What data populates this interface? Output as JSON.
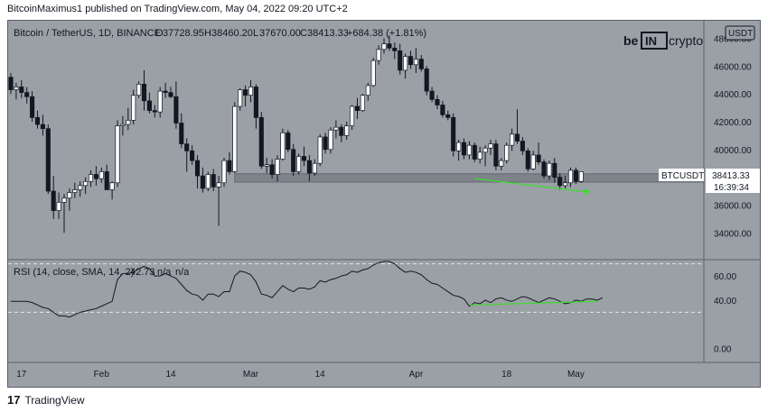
{
  "caption": "BitcoinMaximus1 published on TradingView.com, May 04, 2022 09:20 UTC+2",
  "footer": {
    "brand": "TradingView"
  },
  "chart_data": [
    {
      "type": "candlestick",
      "title": "Bitcoin / TetherUS, 1D, BINANCE",
      "ohlc_label": {
        "o_key": "O",
        "o": "37728.95",
        "h_key": "H",
        "h": "38460.20",
        "l_key": "L",
        "l": "37670.00",
        "c_key": "C",
        "c": "38413.33",
        "change": "+684.38 (+1.81%)"
      },
      "currency": "USDT",
      "logo": "be[in]crypto",
      "price_tag": {
        "symbol": "BTCUSDT",
        "price": "38413.33",
        "countdown": "16:39:34"
      },
      "y_ticks": [
        "48000.00",
        "46000.00",
        "44000.00",
        "42000.00",
        "40000.00",
        "38000.00",
        "36000.00",
        "34000.00"
      ],
      "y_tick_values": [
        48000,
        46000,
        44000,
        42000,
        40000,
        38000,
        36000,
        34000
      ],
      "ylim": [
        32200,
        49200
      ],
      "x_ticks": [
        {
          "label": "17",
          "index": 2
        },
        {
          "label": "Feb",
          "index": 17
        },
        {
          "label": "14",
          "index": 30
        },
        {
          "label": "Mar",
          "index": 45
        },
        {
          "label": "14",
          "index": 58
        },
        {
          "label": "Apr",
          "index": 76
        },
        {
          "label": "18",
          "index": 93
        },
        {
          "label": "May",
          "index": 106
        }
      ],
      "support_zone": {
        "from_index": 42,
        "low": 37650,
        "high": 38250
      },
      "trendline": {
        "from": {
          "index": 87,
          "value": 37900
        },
        "to": {
          "index": 108,
          "value": 36950
        }
      },
      "signal_marker": {
        "index": 108,
        "value": 36900
      },
      "candles": [
        [
          45200,
          45500,
          44000,
          44300
        ],
        [
          44300,
          44800,
          43600,
          44500
        ],
        [
          44500,
          45000,
          43700,
          44100
        ],
        [
          44100,
          44500,
          43300,
          43800
        ],
        [
          43800,
          44200,
          42000,
          42300
        ],
        [
          42300,
          42800,
          41500,
          41800
        ],
        [
          41800,
          42500,
          41000,
          41500
        ],
        [
          41500,
          41800,
          36800,
          37000
        ],
        [
          37000,
          38100,
          35000,
          35600
        ],
        [
          35600,
          36900,
          35000,
          36200
        ],
        [
          36200,
          36800,
          34000,
          36500
        ],
        [
          36500,
          37200,
          35600,
          36900
        ],
        [
          36900,
          37600,
          36500,
          37100
        ],
        [
          37100,
          37700,
          36600,
          37400
        ],
        [
          37400,
          38000,
          36800,
          37700
        ],
        [
          37700,
          38500,
          37300,
          38200
        ],
        [
          38200,
          38800,
          37400,
          37900
        ],
        [
          37900,
          38700,
          37600,
          38400
        ],
        [
          38400,
          38900,
          37200,
          37100
        ],
        [
          37100,
          37700,
          36400,
          37600
        ],
        [
          37600,
          42100,
          37300,
          41700
        ],
        [
          41700,
          42400,
          41000,
          41800
        ],
        [
          41800,
          43000,
          41400,
          42100
        ],
        [
          42100,
          44300,
          41800,
          43900
        ],
        [
          43900,
          44900,
          43700,
          44700
        ],
        [
          44700,
          45700,
          42800,
          43500
        ],
        [
          43500,
          44100,
          42600,
          42800
        ],
        [
          42800,
          43200,
          42300,
          42700
        ],
        [
          42700,
          44500,
          42300,
          44200
        ],
        [
          44200,
          44800,
          43700,
          44100
        ],
        [
          44100,
          44500,
          43700,
          43800
        ],
        [
          43800,
          44900,
          41500,
          41900
        ],
        [
          41900,
          42600,
          40100,
          40400
        ],
        [
          40400,
          40800,
          38400,
          39900
        ],
        [
          39900,
          40300,
          38900,
          39200
        ],
        [
          39200,
          39600,
          37200,
          38100
        ],
        [
          38100,
          38700,
          36900,
          37200
        ],
        [
          37200,
          38400,
          37000,
          38200
        ],
        [
          38200,
          38600,
          37000,
          37300
        ],
        [
          37300,
          38100,
          34500,
          37600
        ],
        [
          37600,
          39400,
          37300,
          39200
        ],
        [
          39200,
          39800,
          38200,
          38400
        ],
        [
          38400,
          43400,
          38300,
          43100
        ],
        [
          43100,
          44400,
          42800,
          44300
        ],
        [
          44300,
          44600,
          43100,
          43900
        ],
        [
          43900,
          45000,
          43400,
          44500
        ],
        [
          44500,
          44700,
          41500,
          42300
        ],
        [
          42300,
          42700,
          38600,
          38800
        ],
        [
          38800,
          39400,
          38300,
          38900
        ],
        [
          38900,
          39300,
          37900,
          38200
        ],
        [
          38200,
          39600,
          37700,
          39300
        ],
        [
          39300,
          41500,
          39200,
          41200
        ],
        [
          41200,
          41400,
          39800,
          40000
        ],
        [
          40000,
          40400,
          38100,
          38400
        ],
        [
          38400,
          39700,
          38200,
          39500
        ],
        [
          39500,
          40200,
          38800,
          39200
        ],
        [
          39200,
          39600,
          37700,
          38300
        ],
        [
          38300,
          39300,
          38100,
          39000
        ],
        [
          39000,
          41100,
          38800,
          40900
        ],
        [
          40900,
          41200,
          39700,
          40000
        ],
        [
          40000,
          41600,
          39700,
          41400
        ],
        [
          41400,
          42100,
          40800,
          41600
        ],
        [
          41600,
          41800,
          40500,
          41000
        ],
        [
          41000,
          42000,
          40700,
          41700
        ],
        [
          41700,
          43200,
          41400,
          43100
        ],
        [
          43100,
          43700,
          42200,
          42800
        ],
        [
          42800,
          44000,
          42700,
          43900
        ],
        [
          43900,
          44800,
          43500,
          44600
        ],
        [
          44600,
          46600,
          44500,
          46400
        ],
        [
          46400,
          47500,
          46100,
          47200
        ],
        [
          47200,
          48000,
          46900,
          47600
        ],
        [
          47600,
          48200,
          47100,
          47300
        ],
        [
          47300,
          47700,
          46500,
          47100
        ],
        [
          47100,
          47600,
          45400,
          45700
        ],
        [
          45700,
          46900,
          45100,
          46700
        ],
        [
          46700,
          47100,
          45800,
          46100
        ],
        [
          46100,
          47300,
          45500,
          46500
        ],
        [
          46500,
          46800,
          45600,
          45800
        ],
        [
          45800,
          46000,
          43900,
          44200
        ],
        [
          44200,
          44500,
          43400,
          43600
        ],
        [
          43600,
          43900,
          42900,
          43200
        ],
        [
          43200,
          43500,
          42300,
          42500
        ],
        [
          42500,
          42800,
          42100,
          42300
        ],
        [
          42300,
          42600,
          39500,
          39900
        ],
        [
          39900,
          40700,
          39200,
          40500
        ],
        [
          40500,
          40800,
          39300,
          39600
        ],
        [
          39600,
          40600,
          39300,
          40300
        ],
        [
          40300,
          40500,
          39100,
          39300
        ],
        [
          39300,
          40200,
          39000,
          39800
        ],
        [
          39800,
          40300,
          38800,
          40100
        ],
        [
          40100,
          40700,
          39600,
          40400
        ],
        [
          40400,
          40700,
          38500,
          38800
        ],
        [
          38800,
          39400,
          38500,
          39200
        ],
        [
          39200,
          40500,
          39000,
          40300
        ],
        [
          40300,
          41500,
          39900,
          41100
        ],
        [
          41100,
          42900,
          40400,
          40600
        ],
        [
          40600,
          40900,
          39600,
          39900
        ],
        [
          39900,
          40100,
          38400,
          38600
        ],
        [
          38600,
          39900,
          38500,
          39600
        ],
        [
          39600,
          40500,
          38900,
          39100
        ],
        [
          39100,
          39300,
          37900,
          38100
        ],
        [
          38100,
          39200,
          37800,
          39000
        ],
        [
          39000,
          39400,
          37600,
          38000
        ],
        [
          38000,
          38300,
          37100,
          37400
        ],
        [
          37400,
          38100,
          37200,
          37600
        ],
        [
          37600,
          38700,
          37300,
          38500
        ],
        [
          38500,
          38700,
          37500,
          37700
        ],
        [
          37700,
          38400,
          37600,
          38400
        ]
      ]
    },
    {
      "type": "line",
      "title": "RSI (14, close, SMA, 14, 2)",
      "value_label": "42.73",
      "na_labels": [
        "n/a",
        "n/a"
      ],
      "y_ticks": [
        "60.00",
        "40.00",
        "0.00"
      ],
      "y_tick_values": [
        60,
        40,
        0
      ],
      "ylim": [
        -10,
        72
      ],
      "dashed_levels": [
        70,
        30
      ],
      "trendline": {
        "from": {
          "index": 86,
          "value": 36
        },
        "to": {
          "index": 110,
          "value": 39
        }
      },
      "values": [
        39,
        39,
        39,
        39,
        38,
        36,
        34,
        33,
        30,
        27,
        27,
        26,
        28,
        30,
        31,
        32,
        33,
        35,
        37,
        39,
        57,
        62,
        62,
        63,
        66,
        68,
        66,
        60,
        60,
        62,
        60,
        58,
        53,
        48,
        45,
        44,
        40,
        45,
        45,
        43,
        47,
        47,
        60,
        64,
        63,
        61,
        55,
        45,
        44,
        42,
        47,
        52,
        49,
        47,
        50,
        50,
        49,
        51,
        56,
        55,
        57,
        58,
        60,
        61,
        64,
        63,
        65,
        66,
        69,
        71,
        72,
        72,
        70,
        66,
        63,
        64,
        63,
        61,
        57,
        54,
        53,
        50,
        47,
        44,
        43,
        41,
        35,
        38,
        37,
        40,
        38,
        41,
        42,
        40,
        39,
        41,
        43,
        42,
        40,
        38,
        40,
        42,
        41,
        39,
        37,
        38,
        40,
        39,
        41,
        41,
        40,
        42
      ]
    }
  ]
}
